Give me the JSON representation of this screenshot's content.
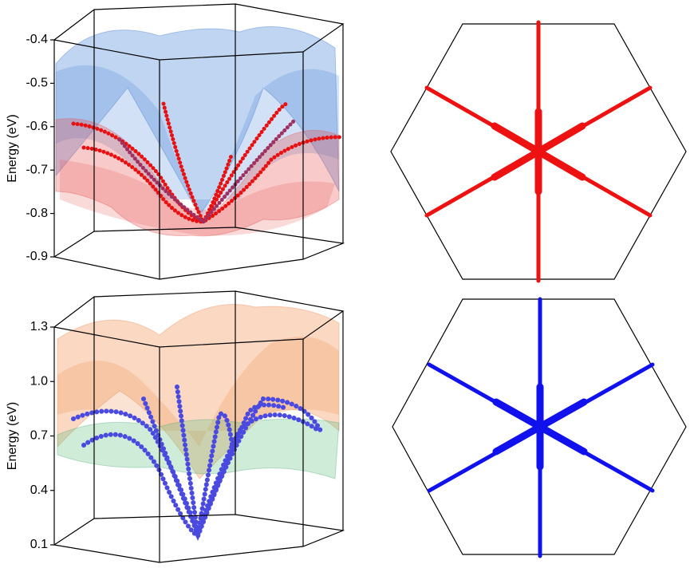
{
  "chart_data": [
    {
      "type": "surface",
      "ylabel": "Energy (eV)",
      "ylim": [
        -0.9,
        -0.4
      ],
      "yticks": [
        -0.4,
        -0.5,
        -0.6,
        -0.7,
        -0.8,
        -0.9
      ]
    },
    {
      "type": "surface",
      "ylabel": "Energy (eV)",
      "ylim": [
        0.1,
        1.3
      ],
      "yticks": [
        1.3,
        {
          "value": 1,
          "label": "1.0"
        },
        0.7,
        0.4,
        0.1
      ]
    }
  ]
}
